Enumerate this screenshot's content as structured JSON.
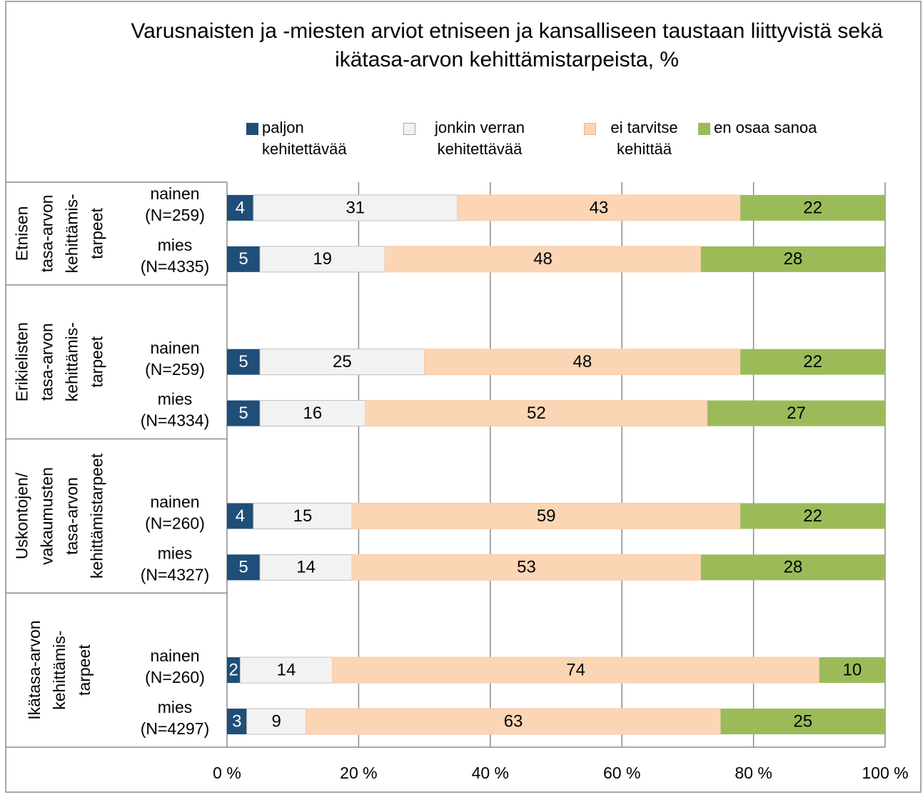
{
  "chart_data": {
    "type": "stacked_barh",
    "title": "Varusnaisten ja -miesten arviot etniseen ja kansalliseen taustaan liittyvistä sekä ikätasa-arvon kehittämistarpeista,  %",
    "group_labels": [
      [
        "Etnisen",
        "tasa-arvon",
        "kehittämis-",
        "tarpeet"
      ],
      [
        "Erikielisten",
        "tasa-arvon",
        "kehittämis-",
        "tarpeet"
      ],
      [
        "Uskontojen/",
        "vakaumusten",
        "tasa-arvon",
        "kehittämistarpeet"
      ],
      [
        "Ikätasa-arvon",
        "kehittämis-",
        "tarpeet"
      ]
    ],
    "categories": [
      [
        "nainen",
        "(N=259)"
      ],
      [
        "mies",
        "(N=4335)"
      ],
      [
        "nainen",
        "(N=259)"
      ],
      [
        "mies",
        "(N=4334)"
      ],
      [
        "nainen",
        "(N=260)"
      ],
      [
        "mies",
        "(N=4327)"
      ],
      [
        "nainen",
        "(N=260)"
      ],
      [
        "mies",
        "(N=4297)"
      ]
    ],
    "series": [
      {
        "name": "paljon kehitettävää",
        "color": "#1f4e79",
        "values": [
          4,
          5,
          5,
          5,
          4,
          5,
          2,
          3
        ]
      },
      {
        "name": "jonkin verran kehitettävää",
        "color": "#f2f2f2",
        "values": [
          31,
          19,
          25,
          16,
          15,
          14,
          14,
          9
        ]
      },
      {
        "name": "ei tarvitse kehittää",
        "color": "#fcd5b5",
        "values": [
          43,
          48,
          48,
          52,
          59,
          53,
          74,
          63
        ]
      },
      {
        "name": "en osaa sanoa",
        "color": "#9bbb59",
        "values": [
          22,
          28,
          22,
          27,
          22,
          28,
          10,
          25
        ]
      }
    ],
    "xlim": [
      0,
      100
    ],
    "xticks": [
      {
        "value": 0,
        "label": "0 %"
      },
      {
        "value": 20,
        "label": "20 %"
      },
      {
        "value": 40,
        "label": "40 %"
      },
      {
        "value": 60,
        "label": "60 %"
      },
      {
        "value": 80,
        "label": "80 %"
      },
      {
        "value": 100,
        "label": "100 %"
      }
    ],
    "grid": true
  }
}
